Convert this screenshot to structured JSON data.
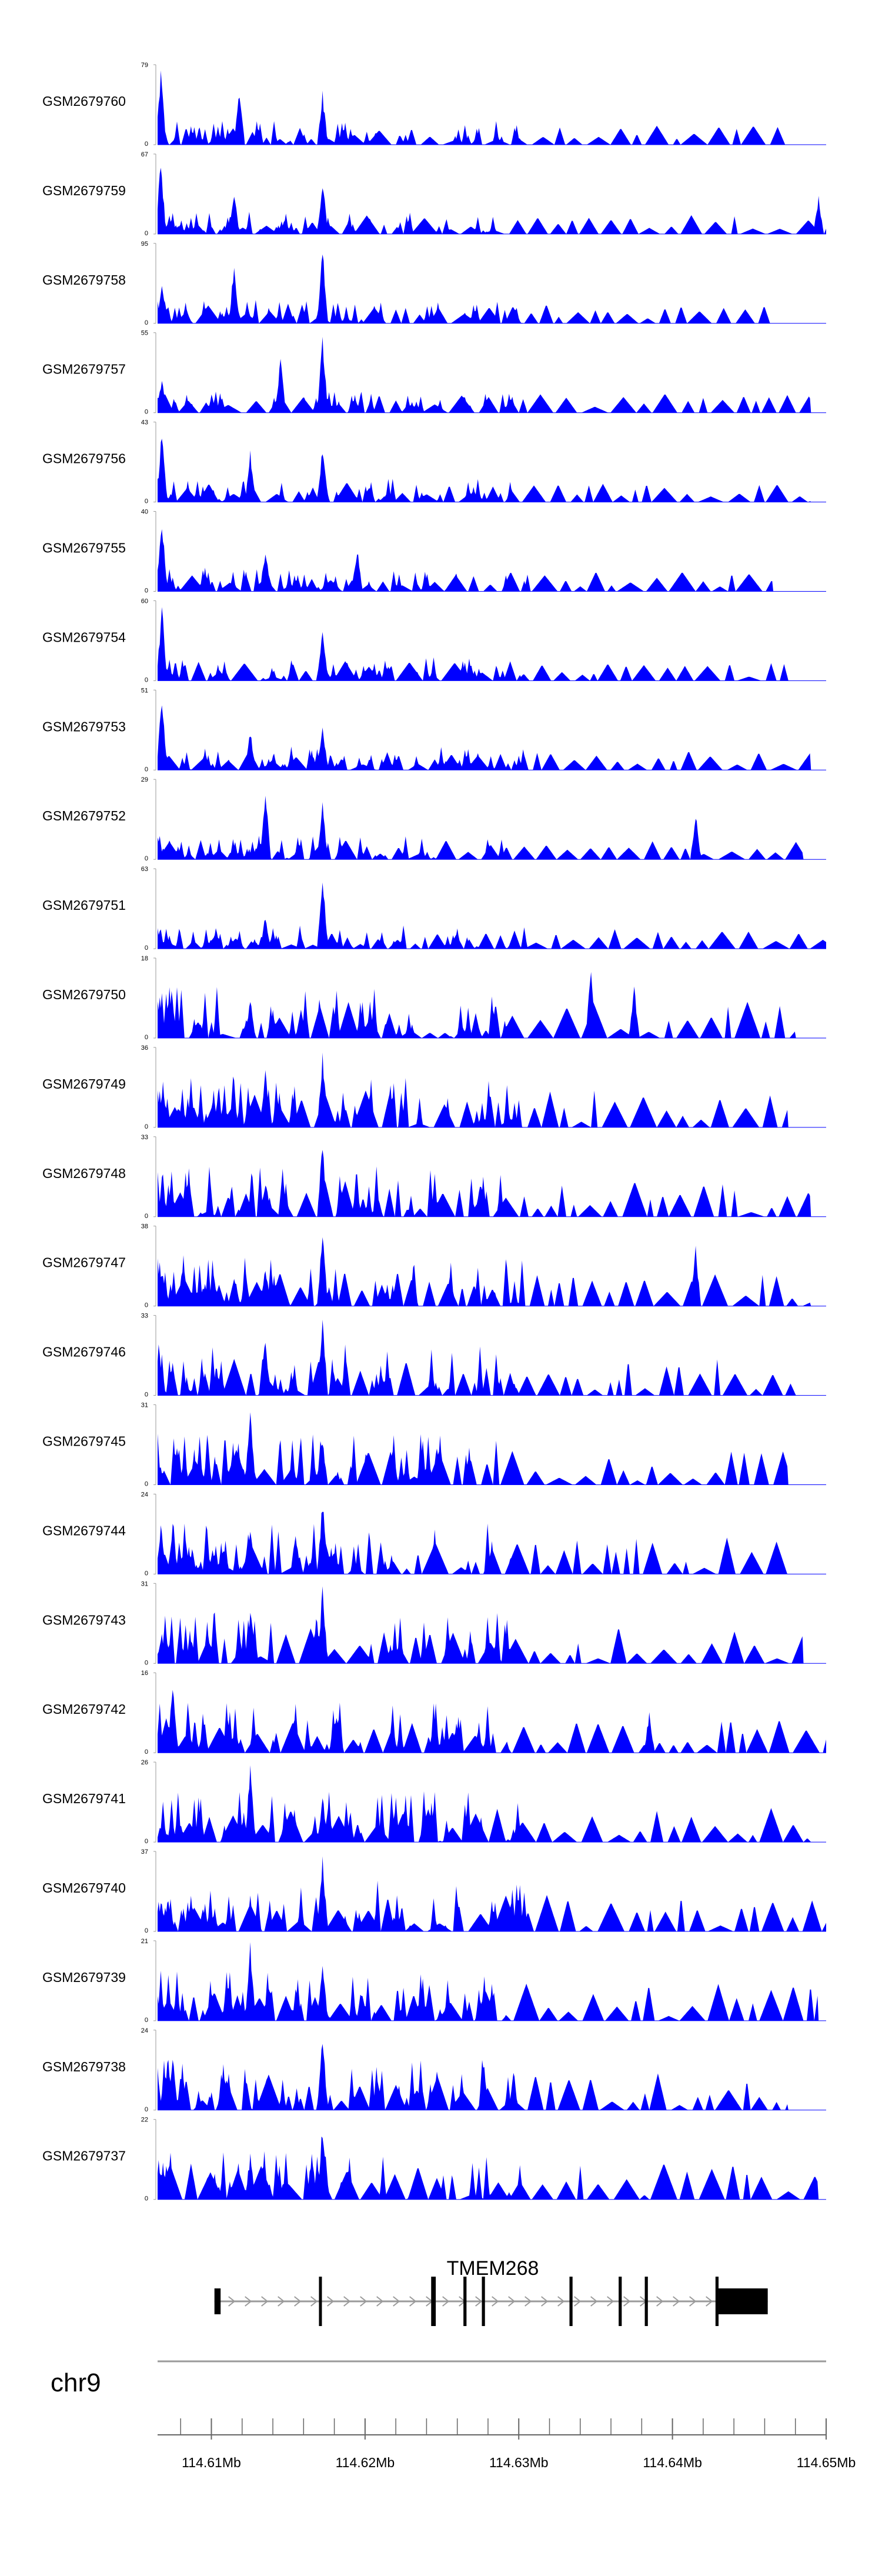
{
  "chart_data": {
    "type": "area",
    "title": "",
    "chromosome": "chr9",
    "x_unit": "Mb",
    "xlim": [
      114.6065,
      114.65
    ],
    "x_ticks_minor_step": 0.002,
    "x_ticks_major": [
      {
        "value": 114.61,
        "label": "114.61Mb"
      },
      {
        "value": 114.62,
        "label": "114.62Mb"
      },
      {
        "value": 114.63,
        "label": "114.63Mb"
      },
      {
        "value": 114.64,
        "label": "114.64Mb"
      },
      {
        "value": 114.65,
        "label": "114.65Mb"
      }
    ],
    "fill_color": "#0000ff",
    "series": [
      {
        "name": "GSM2679760",
        "ymax": 79,
        "peak_positions": [
          114.6067,
          114.6172,
          114.6118
        ],
        "end": 114.6475
      },
      {
        "name": "GSM2679759",
        "ymax": 67,
        "peak_positions": [
          114.6067,
          114.6172,
          114.6115,
          114.6495
        ],
        "end": 114.65
      },
      {
        "name": "GSM2679758",
        "ymax": 95,
        "peak_positions": [
          114.6172,
          114.6068,
          114.6115
        ],
        "end": 114.6465
      },
      {
        "name": "GSM2679757",
        "ymax": 55,
        "peak_positions": [
          114.6172,
          114.6068,
          114.6145
        ],
        "end": 114.649
      },
      {
        "name": "GSM2679756",
        "ymax": 43,
        "peak_positions": [
          114.6068,
          114.6172,
          114.6125
        ],
        "end": 114.649
      },
      {
        "name": "GSM2679755",
        "ymax": 40,
        "peak_positions": [
          114.6068,
          114.6195,
          114.6135
        ],
        "end": 114.6465
      },
      {
        "name": "GSM2679754",
        "ymax": 60,
        "peak_positions": [
          114.6068,
          114.6172
        ],
        "end": 114.6475
      },
      {
        "name": "GSM2679753",
        "ymax": 51,
        "peak_positions": [
          114.6068,
          114.6172,
          114.6125
        ],
        "end": 114.649
      },
      {
        "name": "GSM2679752",
        "ymax": 29,
        "peak_positions": [
          114.6135,
          114.6172,
          114.6415
        ],
        "end": 114.6485
      },
      {
        "name": "GSM2679751",
        "ymax": 63,
        "peak_positions": [
          114.6172,
          114.6135
        ],
        "end": 114.65
      },
      {
        "name": "GSM2679750",
        "ymax": 18,
        "peak_positions": [
          114.6347,
          114.6125,
          114.6375
        ],
        "end": 114.648
      },
      {
        "name": "GSM2679749",
        "ymax": 36,
        "peak_positions": [
          114.6172,
          114.6135
        ],
        "end": 114.6475
      },
      {
        "name": "GSM2679748",
        "ymax": 33,
        "peak_positions": [
          114.6172,
          114.6135,
          114.6275
        ],
        "end": 114.649
      },
      {
        "name": "GSM2679747",
        "ymax": 38,
        "peak_positions": [
          114.6172,
          114.6135,
          114.6415
        ],
        "end": 114.649
      },
      {
        "name": "GSM2679746",
        "ymax": 33,
        "peak_positions": [
          114.6172,
          114.6135
        ],
        "end": 114.648
      },
      {
        "name": "GSM2679745",
        "ymax": 31,
        "peak_positions": [
          114.6125,
          114.6172
        ],
        "end": 114.6475
      },
      {
        "name": "GSM2679744",
        "ymax": 24,
        "peak_positions": [
          114.6172,
          114.6155,
          114.6125
        ],
        "end": 114.6475
      },
      {
        "name": "GSM2679743",
        "ymax": 31,
        "peak_positions": [
          114.6172,
          114.6125
        ],
        "end": 114.6485
      },
      {
        "name": "GSM2679742",
        "ymax": 16,
        "peak_positions": [
          114.6075,
          114.6385,
          114.6245
        ],
        "end": 114.65
      },
      {
        "name": "GSM2679741",
        "ymax": 26,
        "peak_positions": [
          114.6125,
          114.6172
        ],
        "end": 114.649
      },
      {
        "name": "GSM2679740",
        "ymax": 37,
        "peak_positions": [
          114.6172,
          114.6125
        ],
        "end": 114.65
      },
      {
        "name": "GSM2679739",
        "ymax": 21,
        "peak_positions": [
          114.6125,
          114.6138,
          114.6172
        ],
        "end": 114.6495
      },
      {
        "name": "GSM2679738",
        "ymax": 24,
        "peak_positions": [
          114.6172,
          114.6075
        ],
        "end": 114.6475
      },
      {
        "name": "GSM2679737",
        "ymax": 22,
        "peak_positions": [
          114.6172,
          114.6125,
          114.6165
        ],
        "end": 114.6495
      }
    ],
    "y_min_label": "0",
    "gene_track": {
      "gene_name": "TMEM268",
      "strand": "+",
      "start": 114.6102,
      "end": 114.6462,
      "exons": [
        {
          "start": 114.6102,
          "end": 114.6106
        },
        {
          "start": 114.617,
          "end": 114.6171
        },
        {
          "start": 114.6243,
          "end": 114.6246
        },
        {
          "start": 114.6264,
          "end": 114.6266
        },
        {
          "start": 114.6276,
          "end": 114.6278
        },
        {
          "start": 114.6333,
          "end": 114.6335
        },
        {
          "start": 114.6365,
          "end": 114.6367
        },
        {
          "start": 114.6382,
          "end": 114.6384
        },
        {
          "start": 114.6428,
          "end": 114.643
        },
        {
          "start": 114.643,
          "end": 114.6462,
          "thick": true
        }
      ]
    }
  }
}
